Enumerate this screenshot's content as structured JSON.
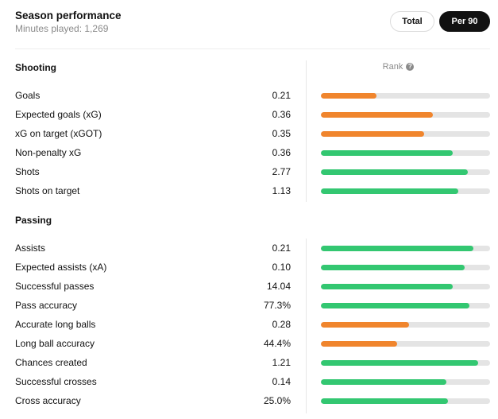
{
  "header": {
    "title": "Season performance",
    "subtitle": "Minutes played: 1,269",
    "toggle_total": "Total",
    "toggle_per90": "Per 90"
  },
  "rank_label": "Rank",
  "colors": {
    "orange": "#f0852d",
    "green": "#33c771",
    "track": "#e4e4e4"
  },
  "sections": [
    {
      "title": "Shooting",
      "rows": [
        {
          "label": "Goals",
          "value": "0.21",
          "rank": 0.33,
          "color": "orange"
        },
        {
          "label": "Expected goals (xG)",
          "value": "0.36",
          "rank": 0.66,
          "color": "orange"
        },
        {
          "label": "xG on target (xGOT)",
          "value": "0.35",
          "rank": 0.61,
          "color": "orange"
        },
        {
          "label": "Non-penalty xG",
          "value": "0.36",
          "rank": 0.78,
          "color": "green"
        },
        {
          "label": "Shots",
          "value": "2.77",
          "rank": 0.87,
          "color": "green"
        },
        {
          "label": "Shots on target",
          "value": "1.13",
          "rank": 0.81,
          "color": "green"
        }
      ]
    },
    {
      "title": "Passing",
      "rows": [
        {
          "label": "Assists",
          "value": "0.21",
          "rank": 0.9,
          "color": "green"
        },
        {
          "label": "Expected assists (xA)",
          "value": "0.10",
          "rank": 0.85,
          "color": "green"
        },
        {
          "label": "Successful passes",
          "value": "14.04",
          "rank": 0.78,
          "color": "green"
        },
        {
          "label": "Pass accuracy",
          "value": "77.3%",
          "rank": 0.88,
          "color": "green"
        },
        {
          "label": "Accurate long balls",
          "value": "0.28",
          "rank": 0.52,
          "color": "orange"
        },
        {
          "label": "Long ball accuracy",
          "value": "44.4%",
          "rank": 0.45,
          "color": "orange"
        },
        {
          "label": "Chances created",
          "value": "1.21",
          "rank": 0.93,
          "color": "green"
        },
        {
          "label": "Successful crosses",
          "value": "0.14",
          "rank": 0.74,
          "color": "green"
        },
        {
          "label": "Cross accuracy",
          "value": "25.0%",
          "rank": 0.75,
          "color": "green"
        }
      ]
    }
  ]
}
